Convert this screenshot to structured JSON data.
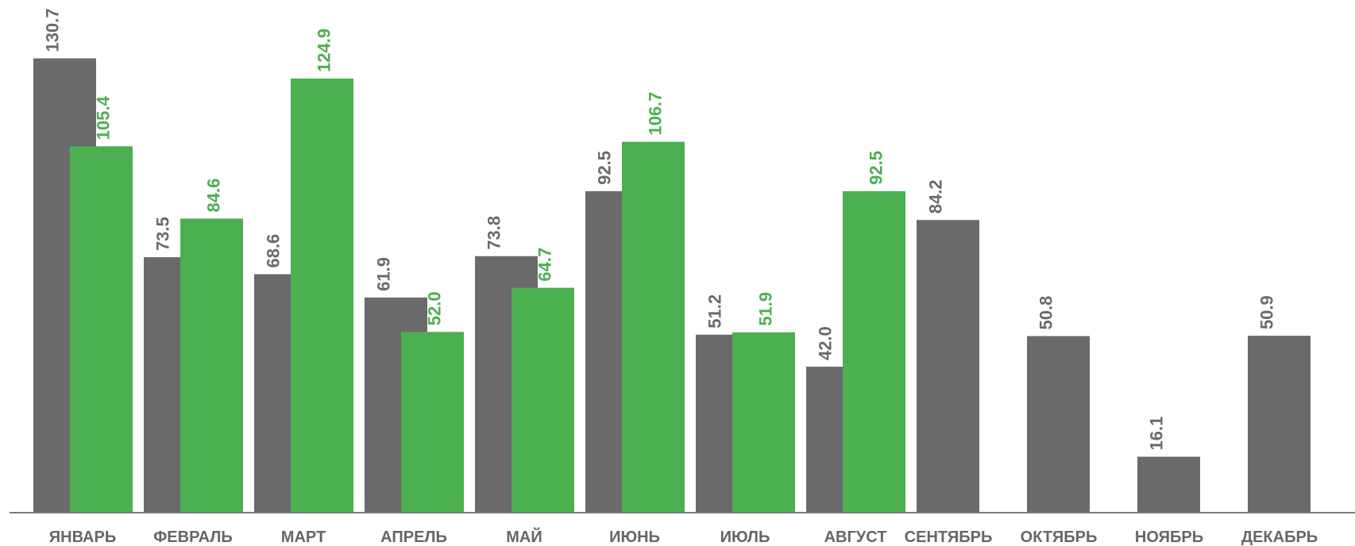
{
  "chart_data": {
    "type": "bar",
    "categories": [
      "ЯНВАРЬ",
      "ФЕВРАЛЬ",
      "МАРТ",
      "АПРЕЛЬ",
      "МАЙ",
      "ИЮНЬ",
      "ИЮЛЬ",
      "АВГУСТ",
      "СЕНТЯБРЬ",
      "ОКТЯБРЬ",
      "НОЯБРЬ",
      "ДЕКАБРЬ"
    ],
    "series": [
      {
        "color": "#6a6a6a",
        "values": [
          130.7,
          73.5,
          68.6,
          61.9,
          73.8,
          92.5,
          51.2,
          42.0,
          84.2,
          50.8,
          16.1,
          50.9
        ],
        "labels": [
          "130.7",
          "73.5",
          "68.6",
          "61.9",
          "73.8",
          "92.5",
          "51.2",
          "42.0",
          "84.2",
          "50.8",
          "16.1",
          "50.9"
        ]
      },
      {
        "color": "#4caf50",
        "values": [
          105.4,
          84.6,
          124.9,
          52.0,
          64.7,
          106.7,
          51.9,
          92.5,
          null,
          null,
          null,
          null
        ],
        "labels": [
          "105.4",
          "84.6",
          "124.9",
          "52.0",
          "64.7",
          "106.7",
          "51.9",
          "92.5",
          null,
          null,
          null,
          null
        ]
      }
    ],
    "title": "",
    "xlabel": "",
    "ylabel": "",
    "ylim": [
      0,
      140
    ],
    "grid": false,
    "legend": "none"
  }
}
